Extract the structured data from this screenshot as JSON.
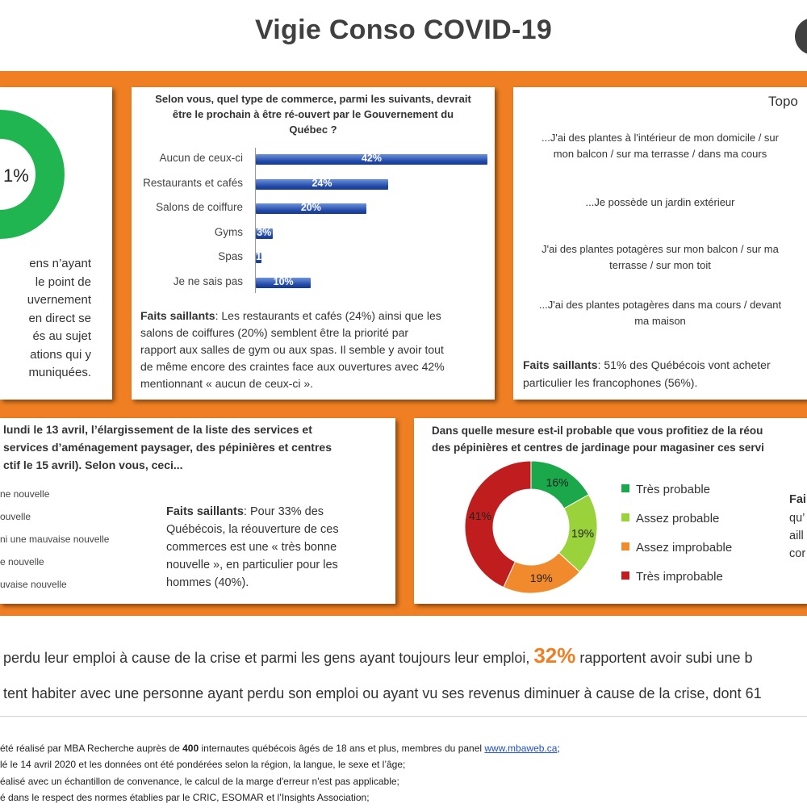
{
  "header": {
    "title": "Vigie Conso COVID-19"
  },
  "left_panel": {
    "donut_label": "1%",
    "lines": [
      "ens n’ayant",
      "le point de",
      "uvernement",
      "en direct se",
      "és au sujet",
      "ations qui y",
      "muniquées."
    ]
  },
  "chart_panel": {
    "title_lines": [
      "Selon vous, quel type de commerce, parmi les suivants, devrait",
      "être le prochain à être ré-ouvert par le Gouvernement du",
      "Québec ?"
    ],
    "faits_bold": "Faits saillants",
    "faits_lines": [
      ": Les restaurants et cafés (24%) ainsi que les",
      "salons de coiffures (20%) semblent être la priorité par",
      "rapport aux salles de gym ou aux spas. Il semble y avoir tout",
      "de même encore des craintes face aux ouvertures avec 42%",
      "mentionnant « aucun de ceux-ci »."
    ]
  },
  "chart_data": [
    {
      "type": "bar",
      "categories": [
        "Aucun de ceux-ci",
        "Restaurants et cafés",
        "Salons de coiffure",
        "Gyms",
        "Spas",
        "Je ne sais pas"
      ],
      "values": [
        42,
        24,
        20,
        3,
        1,
        10
      ],
      "value_labels": [
        "42%",
        "24%",
        "20%",
        "3%",
        "1%",
        "10%"
      ],
      "title": "Selon vous, quel type de commerce, parmi les suivants, devrait être le prochain à être ré-ouvert par le Gouvernement du Québec ?"
    },
    {
      "type": "pie",
      "categories": [
        "Très probable",
        "Assez probable",
        "Assez improbable",
        "Très improbable"
      ],
      "values": [
        16,
        19,
        19,
        41
      ],
      "value_labels": [
        "16%",
        "19%",
        "19%",
        "41%"
      ],
      "colors": [
        "#1aa84a",
        "#9ad23c",
        "#f08a2c",
        "#c01e1e"
      ]
    }
  ],
  "topo_panel": {
    "title": "Topo",
    "items": [
      [
        "...J'ai des plantes à l'intérieur de mon domicile / sur",
        "mon balcon / sur ma terrasse  / dans ma cours"
      ],
      [
        "...Je possède un jardin extérieur"
      ],
      [
        "J'ai des plantes potagères sur mon balcon / sur ma",
        "terrasse / sur mon toit"
      ],
      [
        "...J'ai des plantes potagères dans ma cours / devant",
        "ma maison"
      ]
    ],
    "faits_bold": "Faits saillants",
    "faits_lines": [
      ": 51% des Québécois vont acheter",
      "particulier les francophones (56%)."
    ]
  },
  "lundi_panel": {
    "question_lines": [
      "lundi le 13 avril, l’élargissement de la liste des services et",
      "services d’aménagement paysager, des pépinières et centres",
      "ctif le 15 avril). Selon vous, ceci..."
    ],
    "options": [
      "ne nouvelle",
      "ouvelle",
      "ni une mauvaise nouvelle",
      "e nouvelle",
      "uvaise nouvelle"
    ],
    "faits_bold": "Faits saillants",
    "faits_lines": [
      ": Pour 33% des",
      "Québécois, la réouverture de ces",
      "commerces est une « très bonne",
      "nouvelle », en particulier pour les",
      "hommes (40%)."
    ]
  },
  "jardin_panel": {
    "title_lines": [
      "Dans quelle mesure est-il probable que vous profitiez de la réou",
      "des pépinières et centres de jardinage pour magasiner ces servi"
    ],
    "side_bold": "Fai",
    "side_lines": [
      "qu’",
      "aill",
      "cor"
    ]
  },
  "bottom": {
    "line1_pre": "perdu leur emploi à cause de la crise et parmi les gens ayant toujours leur emploi, ",
    "line1_big": "32%",
    "line1_post": " rapportent avoir subi une b",
    "line2": "tent habiter avec une personne ayant perdu son emploi ou ayant vu ses revenus diminuer à cause de la crise, dont 61"
  },
  "footer": {
    "l1_pre": "été réalisé par MBA Recherche auprès de ",
    "l1_bold": "400",
    "l1_post": " internautes québécois âgés de 18 ans et plus, membres du panel ",
    "l1_link": "www.mbaweb.ca",
    "l1_end": ";",
    "l2": "lé le 14 avril 2020 et les données ont été pondérées selon la région, la langue, le sexe et l’âge;",
    "l3": "éalisé avec un échantillon de convenance, le calcul de la marge d'erreur n'est pas applicable;",
    "l4": "é dans le respect des normes établies par le CRIC, ESOMAR et l’Insights Association;"
  }
}
